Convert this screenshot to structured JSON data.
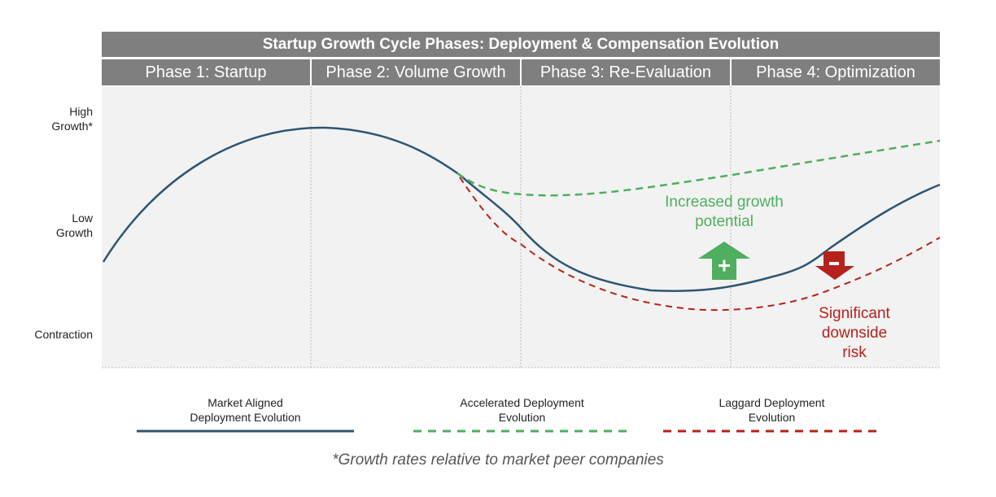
{
  "title": "Startup Growth Cycle Phases: Deployment & Compensation Evolution",
  "phases": [
    "Phase 1: Startup",
    "Phase 2: Volume Growth",
    "Phase 3: Re-Evaluation",
    "Phase 4: Optimization"
  ],
  "y_labels": {
    "high": [
      "High",
      "Growth*"
    ],
    "low": [
      "Low",
      "Growth"
    ],
    "contraction": "Contraction"
  },
  "annotations": {
    "up": [
      "Increased growth",
      "potential"
    ],
    "down": [
      "Significant",
      "downside",
      "risk"
    ],
    "up_icon": "arrow-up-plus-icon",
    "down_icon": "arrow-down-minus-icon"
  },
  "legend": [
    {
      "label": [
        "Market Aligned",
        "Deployment Evolution"
      ],
      "style": "solid",
      "color": "#2e5573"
    },
    {
      "label": [
        "Accelerated Deployment",
        "Evolution"
      ],
      "style": "dashed",
      "color": "#4fae5f"
    },
    {
      "label": [
        "Laggard Deployment",
        "Evolution"
      ],
      "style": "dashed",
      "color": "#b5211b"
    }
  ],
  "footnote": "*Growth rates relative to market peer companies"
}
